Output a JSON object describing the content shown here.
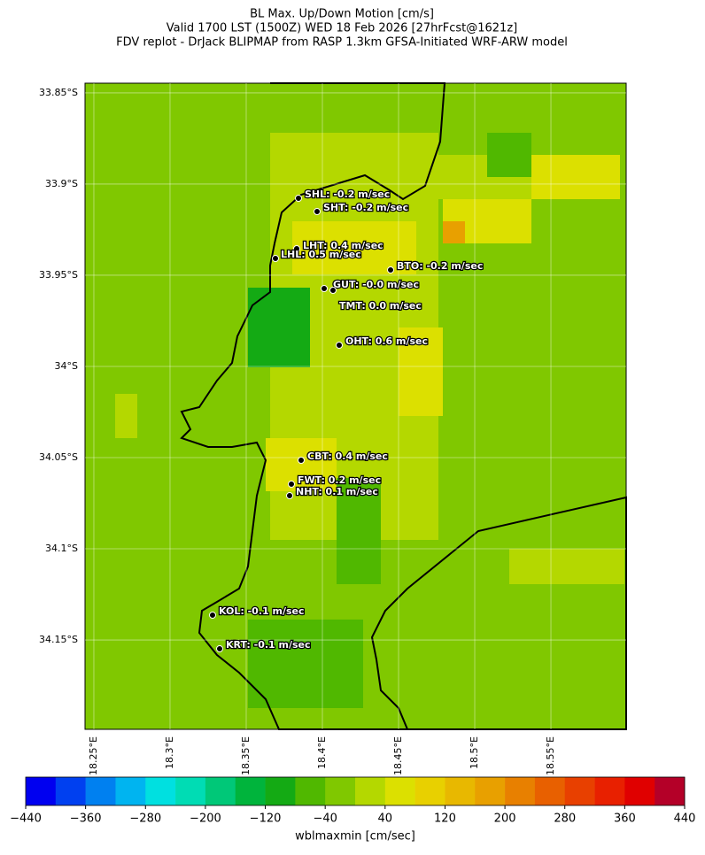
{
  "title": [
    "BL Max. Up/Down Motion [cm/s]",
    "Valid 1700 LST (1500Z) WED 18 Feb 2026 [27hrFcst@1621z]",
    "FDV replot - DrJack BLIPMAP from RASP 1.3km GFSA-Initiated WRF-ARW model"
  ],
  "map": {
    "lonlim": [
      18.2442,
      18.5994
    ],
    "latlim": [
      -33.8447,
      -34.199
    ],
    "lat_ticks": [
      {
        "value": -33.85,
        "label": "33.85°S"
      },
      {
        "value": -33.9,
        "label": "33.9°S"
      },
      {
        "value": -33.95,
        "label": "33.95°S"
      },
      {
        "value": -34.0,
        "label": "34°S"
      },
      {
        "value": -34.05,
        "label": "34.05°S"
      },
      {
        "value": -34.1,
        "label": "34.1°S"
      },
      {
        "value": -34.15,
        "label": "34.15°S"
      }
    ],
    "lon_ticks": [
      {
        "value": 18.25,
        "label": "18.25°E"
      },
      {
        "value": 18.3,
        "label": "18.3°E"
      },
      {
        "value": 18.35,
        "label": "18.35°E"
      },
      {
        "value": 18.4,
        "label": "18.4°E"
      },
      {
        "value": 18.45,
        "label": "18.45°E"
      },
      {
        "value": 18.5,
        "label": "18.5°E"
      },
      {
        "value": 18.55,
        "label": "18.55°E"
      }
    ],
    "stations": [
      "SHL: -0.2 m/sec",
      "SHT: -0.2 m/sec",
      "LHT: 0.4 m/sec",
      "LHL: 0.5 m/sec",
      "BTO: -0.2 m/sec",
      "GUT: -0.0 m/sec",
      "TMT: 0.0 m/sec",
      "OHT: 0.6 m/sec",
      "CBT: 0.4 m/sec",
      "FWT: 0.2 m/sec",
      "NHT: 0.1 m/sec",
      "KOL: -0.1 m/sec",
      "KRT: -0.1 m/sec"
    ]
  },
  "colorbar": {
    "label": "wblmaxmin [cm/sec]",
    "lim": [
      -440,
      440
    ],
    "ticks": [
      {
        "value": -440,
        "label": "−440"
      },
      {
        "value": -360,
        "label": "−360"
      },
      {
        "value": -280,
        "label": "−280"
      },
      {
        "value": -200,
        "label": "−200"
      },
      {
        "value": -120,
        "label": "−120"
      },
      {
        "value": -40,
        "label": "−40"
      },
      40,
      120,
      200,
      280,
      360,
      440
    ],
    "colors": [
      "#0000f0",
      "#0040f0",
      "#0080f0",
      "#00b4f0",
      "#00e0e0",
      "#00dcb4",
      "#00c878",
      "#00b43c",
      "#14aa14",
      "#50b800",
      "#80c800",
      "#b4d800",
      "#dce000",
      "#e8d000",
      "#e8b800",
      "#e8a000",
      "#e88000",
      "#e86000",
      "#e84000",
      "#e82000",
      "#e00000",
      "#b40028"
    ]
  }
}
